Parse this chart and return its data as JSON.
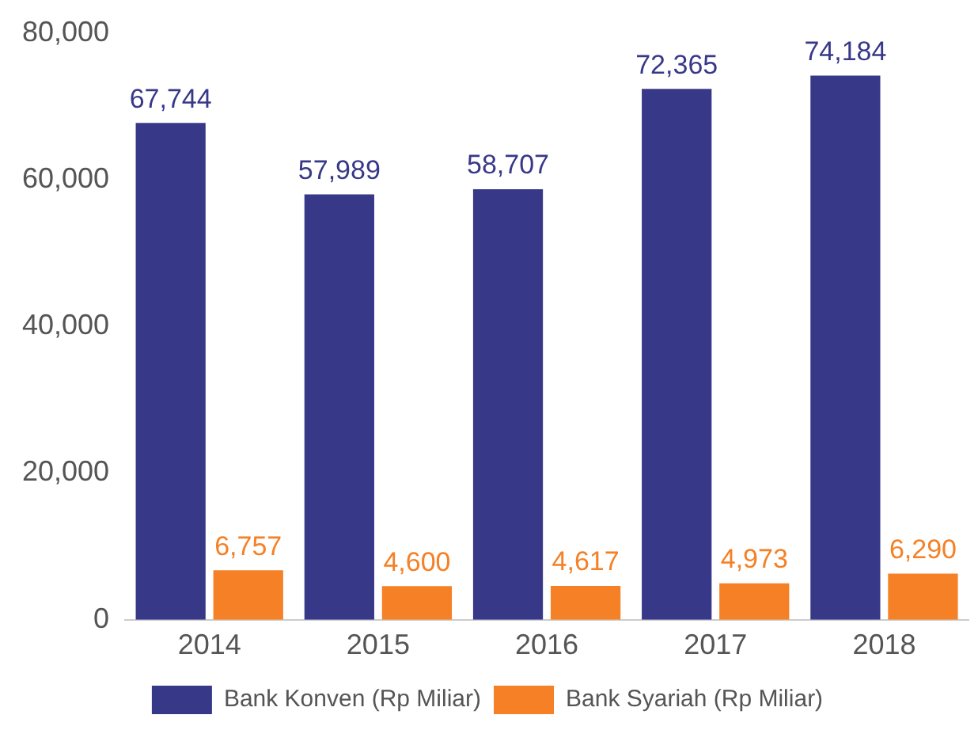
{
  "chart_data": {
    "type": "bar",
    "categories": [
      "2014",
      "2015",
      "2016",
      "2017",
      "2018"
    ],
    "series": [
      {
        "name": "Bank Konven (Rp Miliar)",
        "color": "#383889",
        "values": [
          67744,
          57989,
          58707,
          72365,
          74184
        ],
        "value_labels": [
          "67,744",
          "57,989",
          "58,707",
          "72,365",
          "74,184"
        ]
      },
      {
        "name": "Bank Syariah (Rp Miliar)",
        "color": "#f58025",
        "values": [
          6757,
          4600,
          4617,
          4973,
          6290
        ],
        "value_labels": [
          "6,757",
          "4,600",
          "4,617",
          "4,973",
          "6,290"
        ]
      }
    ],
    "ylim": [
      0,
      80000
    ],
    "yticks": [
      {
        "value": 0,
        "label": "0"
      },
      {
        "value": 20000,
        "label": "20,000"
      },
      {
        "value": 40000,
        "label": "40,000"
      },
      {
        "value": 60000,
        "label": "60,000"
      },
      {
        "value": 80000,
        "label": "80,000"
      }
    ],
    "grid": false,
    "legend": "bottom"
  }
}
